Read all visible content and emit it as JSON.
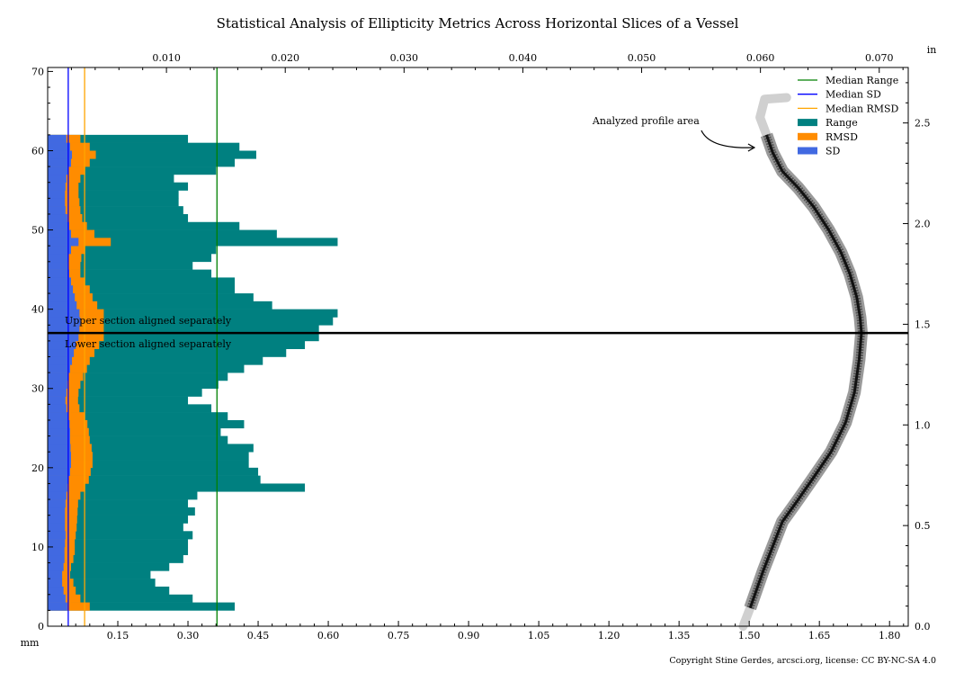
{
  "chart_data": {
    "type": "bar",
    "orientation": "horizontal",
    "title": "Statistical Analysis of Ellipticity Metrics Across Horizontal Slices of a Vessel",
    "xlabel": "",
    "ylabel": "",
    "x_unit_label": "mm",
    "secondary_unit_label": "in",
    "xlim": [
      0,
      1.84
    ],
    "ylim": [
      0,
      70.5
    ],
    "x_ticks": [
      "0.15",
      "0.30",
      "0.45",
      "0.60",
      "0.75",
      "0.90",
      "1.05",
      "1.20",
      "1.35",
      "1.50",
      "1.65",
      "1.80"
    ],
    "y_ticks": [
      "0",
      "10",
      "20",
      "30",
      "40",
      "50",
      "60",
      "70"
    ],
    "top_ticks": [
      "0.010",
      "0.020",
      "0.030",
      "0.040",
      "0.050",
      "0.060",
      "0.070"
    ],
    "right_ticks": [
      "0.0",
      "0.5",
      "1.0",
      "1.5",
      "2.0",
      "2.5"
    ],
    "grid": false,
    "legend_position": "top-right",
    "slice_heights_mm": [
      2,
      3,
      4,
      5,
      6,
      7,
      8,
      9,
      10,
      11,
      12,
      13,
      14,
      15,
      16,
      17,
      18,
      19,
      20,
      21,
      22,
      23,
      24,
      25,
      26,
      27,
      28,
      29,
      30,
      31,
      32,
      33,
      34,
      35,
      36,
      37,
      38,
      39,
      40,
      41,
      42,
      43,
      44,
      45,
      46,
      47,
      48,
      49,
      50,
      51,
      52,
      53,
      54,
      55,
      56,
      57,
      58,
      59,
      60,
      61
    ],
    "series": [
      {
        "name": "Range",
        "color": "#008080",
        "values": [
          0.4,
          0.31,
          0.26,
          0.23,
          0.22,
          0.26,
          0.29,
          0.3,
          0.3,
          0.31,
          0.29,
          0.3,
          0.315,
          0.3,
          0.32,
          0.55,
          0.455,
          0.45,
          0.43,
          0.43,
          0.44,
          0.385,
          0.37,
          0.42,
          0.385,
          0.35,
          0.3,
          0.33,
          0.365,
          0.385,
          0.42,
          0.46,
          0.51,
          0.55,
          0.58,
          0.58,
          0.61,
          0.62,
          0.48,
          0.44,
          0.4,
          0.4,
          0.35,
          0.31,
          0.35,
          0.36,
          0.62,
          0.49,
          0.41,
          0.3,
          0.29,
          0.28,
          0.28,
          0.3,
          0.27,
          0.36,
          0.4,
          0.446,
          0.41,
          0.3
        ]
      },
      {
        "name": "RMSD",
        "color": "#ff8c00",
        "values": [
          0.09,
          0.07,
          0.06,
          0.055,
          0.048,
          0.05,
          0.055,
          0.058,
          0.058,
          0.06,
          0.062,
          0.063,
          0.064,
          0.065,
          0.07,
          0.08,
          0.088,
          0.092,
          0.096,
          0.096,
          0.094,
          0.09,
          0.088,
          0.085,
          0.078,
          0.068,
          0.065,
          0.066,
          0.07,
          0.076,
          0.084,
          0.09,
          0.1,
          0.11,
          0.12,
          0.12,
          0.12,
          0.12,
          0.106,
          0.096,
          0.09,
          0.08,
          0.07,
          0.07,
          0.072,
          0.08,
          0.135,
          0.1,
          0.084,
          0.074,
          0.07,
          0.068,
          0.066,
          0.066,
          0.07,
          0.08,
          0.09,
          0.103,
          0.09,
          0.07
        ]
      },
      {
        "name": "SD",
        "color": "#4169e1",
        "values": [
          0.042,
          0.038,
          0.034,
          0.031,
          0.031,
          0.034,
          0.036,
          0.036,
          0.037,
          0.038,
          0.037,
          0.037,
          0.037,
          0.038,
          0.04,
          0.042,
          0.045,
          0.048,
          0.05,
          0.05,
          0.049,
          0.048,
          0.048,
          0.047,
          0.044,
          0.04,
          0.038,
          0.04,
          0.042,
          0.045,
          0.048,
          0.052,
          0.056,
          0.06,
          0.066,
          0.068,
          0.07,
          0.068,
          0.062,
          0.058,
          0.054,
          0.05,
          0.046,
          0.043,
          0.045,
          0.05,
          0.066,
          0.05,
          0.046,
          0.042,
          0.038,
          0.037,
          0.037,
          0.038,
          0.04,
          0.045,
          0.05,
          0.052,
          0.048,
          0.04
        ]
      }
    ],
    "median_lines": [
      {
        "name": "Median Range",
        "color": "#008000",
        "value": 0.362
      },
      {
        "name": "Median SD",
        "color": "#0000ff",
        "value": 0.044
      },
      {
        "name": "Median RMSD",
        "color": "#ffa500",
        "value": 0.079
      }
    ],
    "legend": [
      "Median Range",
      "Median SD",
      "Median RMSD",
      "Range",
      "RMSD",
      "SD"
    ],
    "split_line": {
      "y": 37.0,
      "upper_label": "Upper section aligned separately",
      "lower_label": "Lower section aligned separately"
    },
    "profile": {
      "analyzed": [
        [
          1.502,
          2.3
        ],
        [
          1.53,
          7
        ],
        [
          1.571,
          13.2
        ],
        [
          1.605,
          16
        ],
        [
          1.638,
          18.8
        ],
        [
          1.675,
          22
        ],
        [
          1.706,
          25.7
        ],
        [
          1.725,
          29.5
        ],
        [
          1.735,
          33.6
        ],
        [
          1.74,
          37
        ],
        [
          1.737,
          39
        ],
        [
          1.73,
          41.5
        ],
        [
          1.715,
          44.5
        ],
        [
          1.696,
          47.2
        ],
        [
          1.67,
          50
        ],
        [
          1.638,
          52.9
        ],
        [
          1.605,
          55.3
        ],
        [
          1.571,
          57.4
        ],
        [
          1.55,
          59.8
        ],
        [
          1.537,
          62
        ]
      ],
      "excluded_bottom": [
        [
          1.487,
          0
        ],
        [
          1.502,
          2.3
        ]
      ],
      "excluded_top": [
        [
          1.537,
          62
        ],
        [
          1.523,
          64.2
        ],
        [
          1.533,
          66.5
        ],
        [
          1.58,
          66.7
        ]
      ],
      "annotation": {
        "text": "Analyzed profile area",
        "text_at": [
          1.165,
          63.8
        ],
        "arrow_to": [
          1.513,
          60.4
        ]
      }
    },
    "copyright": "Copyright Stine Gerdes, arcsci.org, license: CC BY-NC-SA 4.0"
  }
}
